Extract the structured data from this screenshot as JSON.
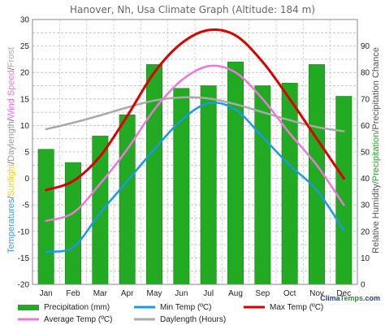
{
  "chart_data": {
    "type": "bar",
    "title": "Hanover, Nh, Usa Climate Graph (Altitude: 184 m)",
    "categories": [
      "Jan",
      "Feb",
      "Mar",
      "Apr",
      "May",
      "Jun",
      "Jul",
      "Aug",
      "Sep",
      "Oct",
      "Nov",
      "Dec"
    ],
    "left_axis": {
      "label_parts": [
        {
          "text": "Temperatures",
          "color": "#3399ff"
        },
        {
          "text": "/",
          "color": "#555555"
        },
        {
          "text": "Sunlight",
          "color": "#ffcc00"
        },
        {
          "text": "/",
          "color": "#555555"
        },
        {
          "text": "Daylength",
          "color": "#999999"
        },
        {
          "text": "/",
          "color": "#555555"
        },
        {
          "text": "Wind Speed",
          "color": "#ff66ff"
        },
        {
          "text": "/",
          "color": "#555555"
        },
        {
          "text": "Frost",
          "color": "#aaaaaa"
        }
      ],
      "ylim": [
        -20,
        30
      ],
      "ticks": [
        "-20",
        "-15",
        "-10",
        "-5",
        "0",
        "5",
        "10",
        "15",
        "20",
        "25",
        "30"
      ]
    },
    "right_axis": {
      "label_parts": [
        {
          "text": "Relative Humidity",
          "color": "#555555"
        },
        {
          "text": "/",
          "color": "#555555"
        },
        {
          "text": "Precipitation",
          "color": "#22aa22"
        },
        {
          "text": "/",
          "color": "#555555"
        },
        {
          "text": "Precipitation Chance",
          "color": "#555555"
        }
      ],
      "ylim": [
        0,
        100
      ],
      "ticks": [
        "0",
        "10",
        "20",
        "30",
        "40",
        "50",
        "60",
        "70",
        "80",
        "90"
      ]
    },
    "series": [
      {
        "name": "Precipitation (mm)",
        "kind": "bar",
        "axis": "right",
        "color": "#22aa22",
        "values": [
          51,
          46,
          56,
          64,
          83,
          74,
          75,
          84,
          75,
          76,
          83,
          71
        ]
      },
      {
        "name": "Min Temp (ºC)",
        "kind": "line",
        "axis": "left",
        "color": "#1a9be0",
        "values": [
          -13.8,
          -13.0,
          -6.5,
          -0.5,
          5.5,
          11.0,
          14.2,
          13.0,
          7.8,
          2.5,
          -2.2,
          -9.8
        ]
      },
      {
        "name": "Max Temp (ºC)",
        "kind": "line",
        "axis": "left",
        "color": "#dd0000",
        "values": [
          -2.2,
          -0.5,
          4.2,
          11.8,
          20.0,
          25.5,
          28.0,
          27.0,
          22.0,
          15.0,
          7.5,
          0.0
        ]
      },
      {
        "name": "Average Temp (ºC)",
        "kind": "line",
        "axis": "left",
        "color": "#ee77dd",
        "values": [
          -8.0,
          -6.5,
          -1.0,
          5.5,
          13.0,
          18.5,
          21.2,
          20.0,
          15.0,
          8.5,
          2.5,
          -5.0
        ]
      },
      {
        "name": "Daylength (Hours)",
        "kind": "line",
        "axis": "left",
        "color": "#aaaaaa",
        "values": [
          9.3,
          10.5,
          11.9,
          13.4,
          14.7,
          15.3,
          15.1,
          14.0,
          12.5,
          11.0,
          9.7,
          8.9
        ]
      }
    ],
    "grid": true,
    "legend": "bottom",
    "watermark": {
      "part1": "Clima",
      "part2": "Temps",
      "part3": ".com"
    }
  }
}
